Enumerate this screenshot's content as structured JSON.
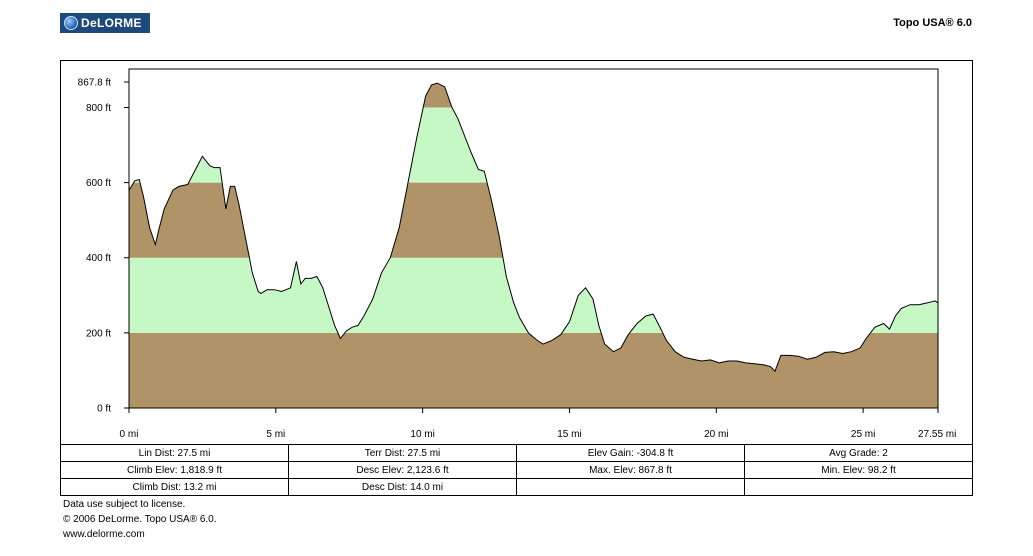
{
  "header": {
    "logo_text": "DeLORME",
    "product": "Topo USA® 6.0"
  },
  "chart_data": {
    "type": "area",
    "title": "",
    "xlabel": "",
    "ylabel": "",
    "x_unit": "mi",
    "y_unit": "ft",
    "xlim": [
      0,
      27.55
    ],
    "ylim": [
      0,
      867.8
    ],
    "x_ticks": [
      0,
      5,
      10,
      15,
      20,
      25,
      27.55
    ],
    "x_tick_labels": [
      "0 mi",
      "5 mi",
      "10 mi",
      "15 mi",
      "20 mi",
      "25 mi",
      "27.55 mi"
    ],
    "y_ticks": [
      0,
      200,
      400,
      600,
      800,
      867.8
    ],
    "y_tick_labels": [
      "0 ft",
      "200 ft",
      "400 ft",
      "600 ft",
      "800 ft",
      "867.8 ft"
    ],
    "band_interval_ft": 200,
    "band_colors": [
      "#b09468",
      "#c6f8c6"
    ],
    "grid": false,
    "series": [
      {
        "x": [
          0,
          0.2,
          0.35,
          0.5,
          0.7,
          0.9,
          1.0,
          1.2,
          1.5,
          1.7,
          2.0,
          2.3,
          2.5,
          2.6,
          2.75,
          2.9,
          3.1,
          3.3,
          3.45,
          3.6,
          3.75,
          3.9,
          4.1,
          4.2,
          4.4,
          4.5,
          4.7,
          4.95,
          5.2,
          5.5,
          5.7,
          5.85,
          6.0,
          6.2,
          6.4,
          6.6,
          6.8,
          7.0,
          7.2,
          7.4,
          7.6,
          7.8,
          8.0,
          8.3,
          8.6,
          8.9,
          9.2,
          9.5,
          9.8,
          10.1,
          10.3,
          10.5,
          10.75,
          11.0,
          11.2,
          11.45,
          11.65,
          11.9,
          12.1,
          12.35,
          12.6,
          12.85,
          13.1,
          13.3,
          13.6,
          13.9,
          14.1,
          14.4,
          14.7,
          15.0,
          15.3,
          15.55,
          15.8,
          16.0,
          16.2,
          16.5,
          16.75,
          17.0,
          17.3,
          17.6,
          17.85,
          18.05,
          18.3,
          18.6,
          18.9,
          19.2,
          19.5,
          19.8,
          20.1,
          20.4,
          20.7,
          21.0,
          21.3,
          21.6,
          21.85,
          22.0,
          22.2,
          22.5,
          22.8,
          23.1,
          23.4,
          23.7,
          24.0,
          24.3,
          24.6,
          24.9,
          25.1,
          25.4,
          25.7,
          25.9,
          26.1,
          26.3,
          26.6,
          26.9,
          27.2,
          27.45,
          27.55
        ],
        "y": [
          580,
          605,
          608,
          560,
          480,
          435,
          470,
          530,
          580,
          590,
          595,
          640,
          670,
          660,
          645,
          640,
          640,
          530,
          590,
          590,
          540,
          480,
          400,
          360,
          310,
          305,
          315,
          315,
          310,
          320,
          390,
          330,
          345,
          345,
          350,
          320,
          270,
          220,
          185,
          205,
          215,
          220,
          245,
          290,
          360,
          400,
          480,
          600,
          720,
          830,
          860,
          865,
          855,
          800,
          770,
          720,
          680,
          635,
          630,
          550,
          460,
          350,
          280,
          240,
          200,
          180,
          170,
          180,
          195,
          230,
          300,
          320,
          290,
          220,
          170,
          150,
          160,
          195,
          225,
          245,
          250,
          220,
          180,
          150,
          135,
          130,
          125,
          128,
          120,
          125,
          125,
          120,
          118,
          115,
          110,
          98,
          140,
          140,
          138,
          130,
          135,
          148,
          150,
          145,
          150,
          160,
          185,
          215,
          225,
          210,
          245,
          265,
          275,
          275,
          280,
          285,
          280
        ]
      }
    ]
  },
  "stats": [
    [
      "Lin Dist: 27.5 mi",
      "Terr Dist: 27.5 mi",
      "Elev Gain: -304.8 ft",
      "Avg Grade: 2"
    ],
    [
      "Climb Elev: 1,818.9 ft",
      "Desc Elev: 2,123.6 ft",
      "Max. Elev: 867.8 ft",
      "Min. Elev: 98.2 ft"
    ],
    [
      "Climb Dist: 13.2 mi",
      "Desc Dist: 14.0 mi",
      "",
      ""
    ]
  ],
  "footer": {
    "license": "Data use subject to license.",
    "copyright": "© 2006 DeLorme. Topo USA® 6.0.",
    "website": "www.delorme.com"
  }
}
